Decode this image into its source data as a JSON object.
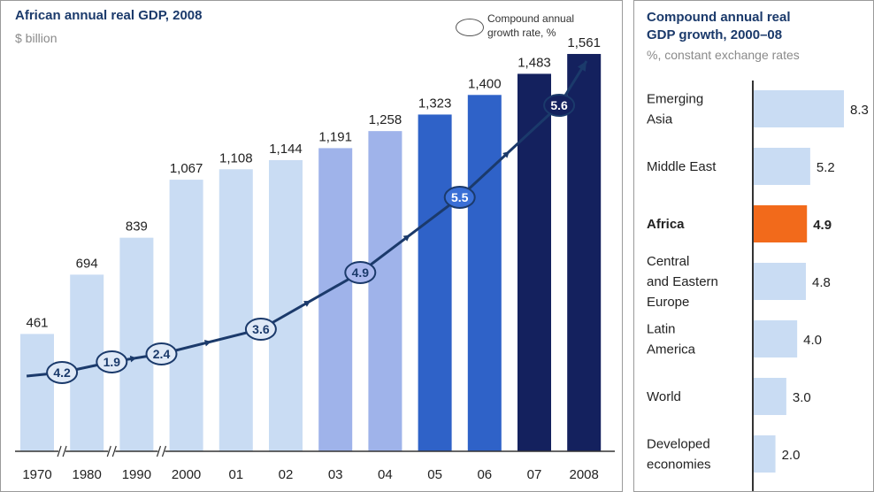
{
  "left": {
    "title": "African annual real GDP, 2008",
    "subtitle": "$ billion",
    "legend_line1": "Compound annual",
    "legend_line2": "growth rate, %"
  },
  "right": {
    "title_line1": "Compound annual real",
    "title_line2": "GDP growth, 2000–08",
    "subtitle": "%, constant exchange rates"
  },
  "chart_data": [
    {
      "type": "bar",
      "title": "African annual real GDP, 2008",
      "subtitle": "$ billion",
      "categories": [
        "1970",
        "1980",
        "1990",
        "2000",
        "01",
        "02",
        "03",
        "04",
        "05",
        "06",
        "07",
        "2008"
      ],
      "values": [
        461,
        694,
        839,
        1067,
        1108,
        1144,
        1191,
        1258,
        1323,
        1400,
        1483,
        1561
      ],
      "value_labels": [
        "461",
        "694",
        "839",
        "1,067",
        "1,108",
        "1,144",
        "1,191",
        "1,258",
        "1,323",
        "1,400",
        "1,483",
        "1,561"
      ],
      "bar_colors": [
        "#c9dcf3",
        "#c9dcf3",
        "#c9dcf3",
        "#c9dcf3",
        "#c9dcf3",
        "#c9dcf3",
        "#9fb3ea",
        "#9fb3ea",
        "#2f62c8",
        "#2f62c8",
        "#14215e",
        "#14215e"
      ],
      "axis_breaks_after": [
        "1970",
        "1980",
        "1990"
      ],
      "growth_rates": [
        {
          "label": "4.2",
          "value": 4.2,
          "between": [
            "1970",
            "1980"
          ]
        },
        {
          "label": "1.9",
          "value": 1.9,
          "between": [
            "1980",
            "1990"
          ]
        },
        {
          "label": "2.4",
          "value": 2.4,
          "between": [
            "1990",
            "2000"
          ]
        },
        {
          "label": "3.6",
          "value": 3.6,
          "between": [
            "01",
            "02"
          ]
        },
        {
          "label": "4.9",
          "value": 4.9,
          "between": [
            "03",
            "04"
          ]
        },
        {
          "label": "5.5",
          "value": 5.5,
          "between": [
            "05",
            "06"
          ]
        },
        {
          "label": "5.6",
          "value": 5.6,
          "between": [
            "07",
            "2008"
          ]
        }
      ],
      "growth_marker_colors": [
        "#dfe9f7",
        "#dfe9f7",
        "#dfe9f7",
        "#dfe9f7",
        "#aab8ee",
        "#3a6fd6",
        "#14215e"
      ],
      "growth_label_colors": [
        "#1b3a6b",
        "#1b3a6b",
        "#1b3a6b",
        "#1b3a6b",
        "#1b3a6b",
        "#ffffff",
        "#ffffff"
      ],
      "line_color": "#1b3a6b",
      "ylim": [
        0,
        1700
      ],
      "grid": false
    },
    {
      "type": "bar",
      "orientation": "horizontal",
      "title": "Compound annual real GDP growth, 2000–08",
      "subtitle": "%, constant exchange rates",
      "categories": [
        [
          "Emerging",
          "Asia"
        ],
        [
          "Middle East"
        ],
        [
          "Africa"
        ],
        [
          "Central",
          "and Eastern",
          "Europe"
        ],
        [
          "Latin",
          "America"
        ],
        [
          "World"
        ],
        [
          "Developed",
          "economies"
        ]
      ],
      "values": [
        8.3,
        5.2,
        4.9,
        4.8,
        4.0,
        3.0,
        2.0
      ],
      "value_labels": [
        "8.3",
        "5.2",
        "4.9",
        "4.8",
        "4.0",
        "3.0",
        "2.0"
      ],
      "highlight": "Africa",
      "bar_color": "#c9dcf3",
      "highlight_color": "#f26a1b",
      "xlim": [
        0,
        8.3
      ],
      "grid": false
    }
  ]
}
